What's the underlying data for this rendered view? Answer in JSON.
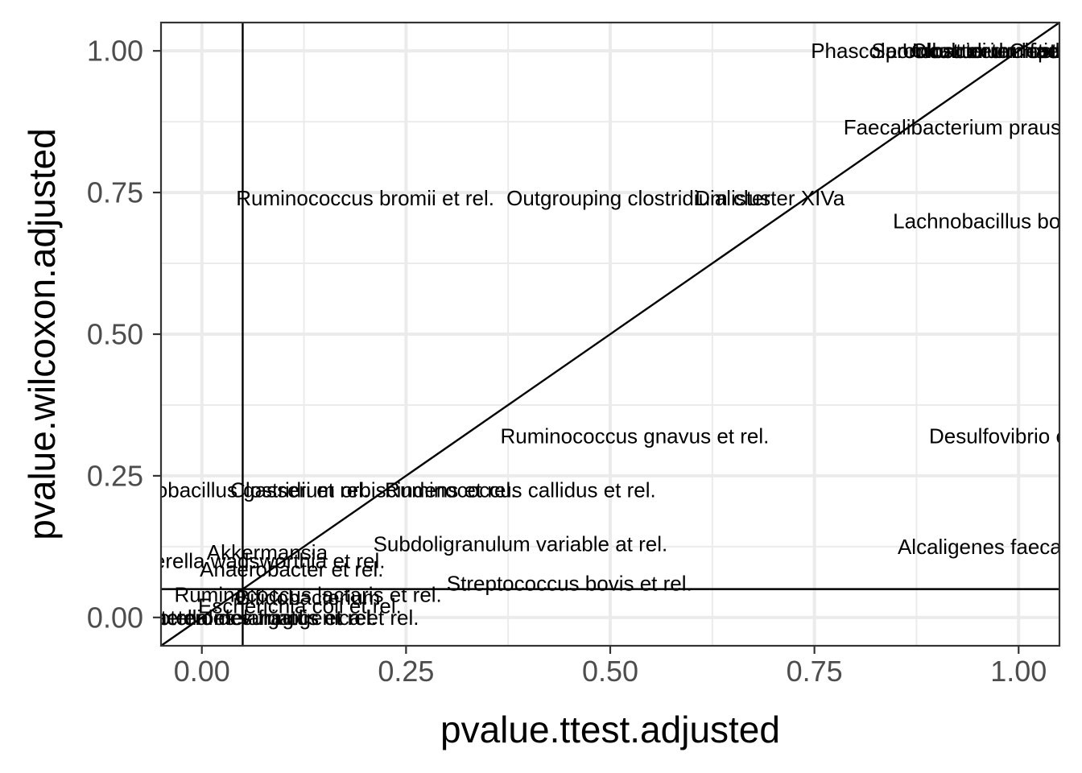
{
  "chart_data": {
    "type": "scatter",
    "xlabel": "pvalue.ttest.adjusted",
    "ylabel": "pvalue.wilcoxon.adjusted",
    "xlim": [
      -0.05,
      1.05
    ],
    "ylim": [
      -0.05,
      1.05
    ],
    "x_ticks": [
      0.0,
      0.25,
      0.5,
      0.75,
      1.0
    ],
    "y_ticks": [
      0.0,
      0.25,
      0.5,
      0.75,
      1.0
    ],
    "x_tick_labels": [
      "0.00",
      "0.25",
      "0.50",
      "0.75",
      "1.00"
    ],
    "y_tick_labels": [
      "0.00",
      "0.25",
      "0.50",
      "0.75",
      "1.00"
    ],
    "grid": true,
    "theme": "bw",
    "reference_lines": {
      "vertical_x": 0.05,
      "horizontal_y": 0.05,
      "diagonal_slope": 1,
      "diagonal_intercept": 0
    },
    "points": [
      {
        "label": "Phascolarctobacterium faecium et rel.",
        "x": 0.96,
        "y": 1.0
      },
      {
        "label": "Sporobacter termitidis et rel.",
        "x": 0.98,
        "y": 1.0
      },
      {
        "label": "Uncultured Clostridiales I",
        "x": 1.0,
        "y": 1.0
      },
      {
        "label": "Clostridium leptum et rel.",
        "x": 1.01,
        "y": 1.0
      },
      {
        "label": "Faecalibacterium prausnitzii et rel.",
        "x": 0.98,
        "y": 0.865
      },
      {
        "label": "Ruminococcus bromii et rel.",
        "x": 0.2,
        "y": 0.74
      },
      {
        "label": "Outgrouping clostridium cluster XIVa",
        "x": 0.58,
        "y": 0.74
      },
      {
        "label": "Dialister",
        "x": 0.65,
        "y": 0.74
      },
      {
        "label": "Lachnobacillus bovis et rel.",
        "x": 1.0,
        "y": 0.7
      },
      {
        "label": "Ruminococcus gnavus et rel.",
        "x": 0.53,
        "y": 0.32
      },
      {
        "label": "Desulfovibrio et rel.",
        "x": 1.0,
        "y": 0.32
      },
      {
        "label": "Lactobacillus gasseri et rel.",
        "x": 0.05,
        "y": 0.225
      },
      {
        "label": "Clostridium orbiscindens et rel.",
        "x": 0.21,
        "y": 0.225
      },
      {
        "label": "Ruminococcus callidus et rel.",
        "x": 0.39,
        "y": 0.225
      },
      {
        "label": "Subdoligranulum variable at rel.",
        "x": 0.39,
        "y": 0.13
      },
      {
        "label": "Alcaligenes faecalis et rel.",
        "x": 1.0,
        "y": 0.125
      },
      {
        "label": "Akkermansia",
        "x": 0.08,
        "y": 0.115
      },
      {
        "label": "Sutterella wadsworthia et rel.",
        "x": 0.06,
        "y": 0.1
      },
      {
        "label": "Anaerobacter et rel.",
        "x": 0.11,
        "y": 0.085
      },
      {
        "label": "Streptococcus bovis et rel.",
        "x": 0.45,
        "y": 0.06
      },
      {
        "label": "Ruminococcus lactaris et rel.",
        "x": 0.13,
        "y": 0.04
      },
      {
        "label": "Bifidobacterium",
        "x": 0.13,
        "y": 0.035
      },
      {
        "label": "Escherichia coli et rel.",
        "x": 0.12,
        "y": 0.02
      },
      {
        "label": "Bacteroides vulgatus et rel.",
        "x": 0.06,
        "y": 0.0
      },
      {
        "label": "Prevotella melaninogenica et rel.",
        "x": 0.08,
        "y": 0.0
      },
      {
        "label": "Bacteroides fragilis et rel.",
        "x": 0.07,
        "y": 0.0
      }
    ]
  }
}
